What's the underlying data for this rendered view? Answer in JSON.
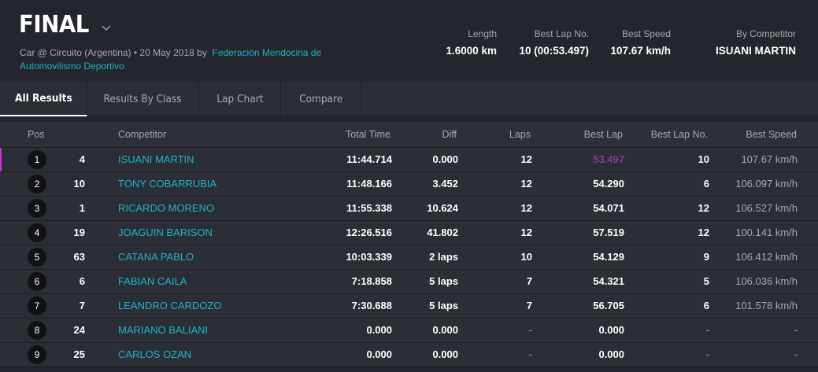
{
  "header": {
    "title": "FINAL",
    "subtitle_prefix": "Car @ Circuito (Argentina) • 20 May 2018 by",
    "organizer": "Federación Mendocina de Automovilismo Deportivo",
    "stats": {
      "length_label": "Length",
      "length_value": "1.6000 km",
      "best_lap_no_label": "Best Lap No.",
      "best_lap_no_value": "10 (00:53.497)",
      "best_speed_label": "Best Speed",
      "best_speed_value": "107.67 km/h",
      "by_competitor_label": "By Competitor",
      "by_competitor_value": "ISUANI MARTIN"
    }
  },
  "tabs": [
    {
      "label": "All Results",
      "active": true
    },
    {
      "label": "Results By Class",
      "active": false
    },
    {
      "label": "Lap Chart",
      "active": false
    },
    {
      "label": "Compare",
      "active": false
    }
  ],
  "table": {
    "columns": {
      "pos": "Pos",
      "competitor": "Competitor",
      "total_time": "Total Time",
      "diff": "Diff",
      "laps": "Laps",
      "best_lap": "Best Lap",
      "best_lap_no": "Best Lap No.",
      "best_speed": "Best Speed"
    },
    "rows": [
      {
        "pos": "1",
        "num": "4",
        "competitor": "ISUANI MARTIN",
        "total_time": "11:44.714",
        "diff": "0.000",
        "laps": "12",
        "best_lap": "53.497",
        "best_lap_no": "10",
        "best_speed": "107.67 km/h"
      },
      {
        "pos": "2",
        "num": "10",
        "competitor": "TONY COBARRUBIA",
        "total_time": "11:48.166",
        "diff": "3.452",
        "laps": "12",
        "best_lap": "54.290",
        "best_lap_no": "6",
        "best_speed": "106.097 km/h"
      },
      {
        "pos": "3",
        "num": "1",
        "competitor": "RICARDO MORENO",
        "total_time": "11:55.338",
        "diff": "10.624",
        "laps": "12",
        "best_lap": "54.071",
        "best_lap_no": "12",
        "best_speed": "106.527 km/h"
      },
      {
        "pos": "4",
        "num": "19",
        "competitor": "JOAGUIN BARISON",
        "total_time": "12:26.516",
        "diff": "41.802",
        "laps": "12",
        "best_lap": "57.519",
        "best_lap_no": "12",
        "best_speed": "100.141 km/h"
      },
      {
        "pos": "5",
        "num": "63",
        "competitor": "CATANA PABLO",
        "total_time": "10:03.339",
        "diff": "2 laps",
        "laps": "10",
        "best_lap": "54.129",
        "best_lap_no": "9",
        "best_speed": "106.412 km/h"
      },
      {
        "pos": "6",
        "num": "6",
        "competitor": "FABIAN CAILA",
        "total_time": "7:18.858",
        "diff": "5 laps",
        "laps": "7",
        "best_lap": "54.321",
        "best_lap_no": "5",
        "best_speed": "106.036 km/h"
      },
      {
        "pos": "7",
        "num": "7",
        "competitor": "LEANDRO CARDOZO",
        "total_time": "7:30.688",
        "diff": "5 laps",
        "laps": "7",
        "best_lap": "56.705",
        "best_lap_no": "6",
        "best_speed": "101.578 km/h"
      },
      {
        "pos": "8",
        "num": "24",
        "competitor": "MARIANO BALIANI",
        "total_time": "0.000",
        "diff": "0.000",
        "laps": "-",
        "best_lap": "0.000",
        "best_lap_no": "-",
        "best_speed": "-"
      },
      {
        "pos": "9",
        "num": "25",
        "competitor": "CARLOS OZAN",
        "total_time": "0.000",
        "diff": "0.000",
        "laps": "-",
        "best_lap": "0.000",
        "best_lap_no": "-",
        "best_speed": "-"
      }
    ]
  },
  "colors": {
    "link": "#1fb2c9",
    "fastest_lap": "#b63bbd",
    "leader_marker": "#c23fc4"
  }
}
